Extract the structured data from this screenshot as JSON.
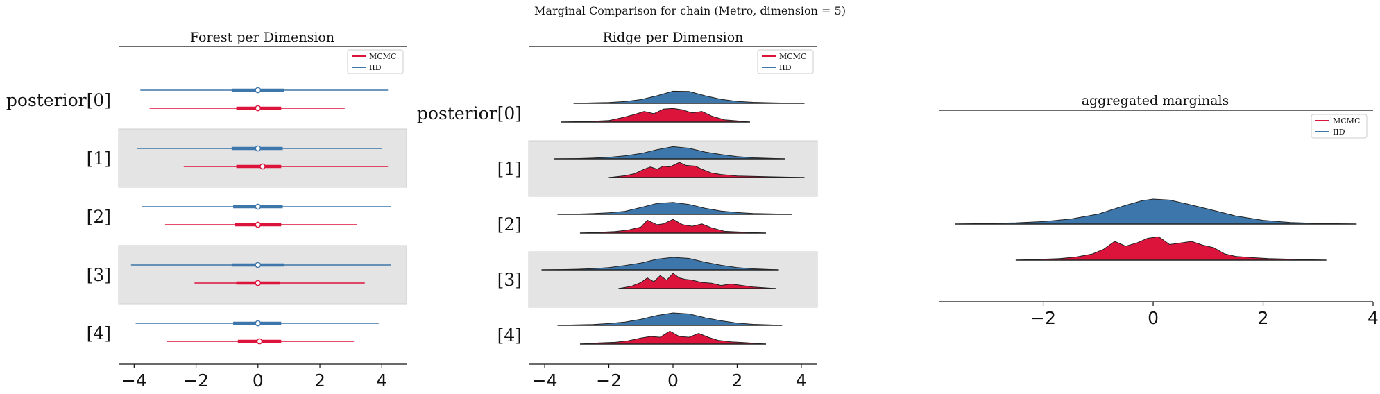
{
  "figure": {
    "title": "Marginal Comparison for chain (Metro, dimension = 5)"
  },
  "colors": {
    "mcmc": "#dc143c",
    "iid": "#3d76aa",
    "band": "#e4e4e4"
  },
  "chart_data": [
    {
      "type": "forest",
      "title": "Forest per Dimension",
      "row_labels": [
        "posterior[0]",
        "[1]",
        "[2]",
        "[3]",
        "[4]"
      ],
      "xlim": [
        -4.5,
        4.8
      ],
      "xticks": [
        -4,
        -2,
        0,
        2,
        4
      ],
      "legend": {
        "position": "top-right",
        "entries": [
          "MCMC",
          "IID"
        ]
      },
      "series": [
        {
          "name": "IID",
          "rows": [
            {
              "low": -3.8,
              "q1": -0.85,
              "median": 0.0,
              "q3": 0.85,
              "high": 4.2
            },
            {
              "low": -3.9,
              "q1": -0.85,
              "median": 0.0,
              "q3": 0.8,
              "high": 4.0
            },
            {
              "low": -3.75,
              "q1": -0.8,
              "median": 0.0,
              "q3": 0.8,
              "high": 4.3
            },
            {
              "low": -4.1,
              "q1": -0.85,
              "median": 0.0,
              "q3": 0.85,
              "high": 4.3
            },
            {
              "low": -3.95,
              "q1": -0.8,
              "median": 0.0,
              "q3": 0.75,
              "high": 3.9
            }
          ]
        },
        {
          "name": "MCMC",
          "rows": [
            {
              "low": -3.5,
              "q1": -0.7,
              "median": 0.0,
              "q3": 0.75,
              "high": 2.8
            },
            {
              "low": -2.4,
              "q1": -0.7,
              "median": 0.15,
              "q3": 0.75,
              "high": 4.2
            },
            {
              "low": -3.0,
              "q1": -0.75,
              "median": 0.0,
              "q3": 0.75,
              "high": 3.2
            },
            {
              "low": -2.05,
              "q1": -0.7,
              "median": 0.0,
              "q3": 0.7,
              "high": 3.45
            },
            {
              "low": -2.95,
              "q1": -0.65,
              "median": 0.05,
              "q3": 0.75,
              "high": 3.1
            }
          ]
        }
      ]
    },
    {
      "type": "ridgeline",
      "title": "Ridge per Dimension",
      "row_labels": [
        "posterior[0]",
        "[1]",
        "[2]",
        "[3]",
        "[4]"
      ],
      "xlim": [
        -4.5,
        4.5
      ],
      "xticks": [
        -4,
        -2,
        0,
        2,
        4
      ],
      "legend": {
        "position": "top-right",
        "entries": [
          "MCMC",
          "IID"
        ]
      },
      "series": [
        {
          "name": "IID",
          "rows": [
            {
              "x": [
                -3.1,
                -2.5,
                -2.0,
                -1.5,
                -1.0,
                -0.5,
                0.0,
                0.5,
                1.0,
                1.5,
                2.0,
                2.5,
                3.0,
                3.5,
                4.1
              ],
              "y": [
                0.0,
                0.03,
                0.06,
                0.12,
                0.25,
                0.5,
                0.8,
                0.78,
                0.5,
                0.27,
                0.13,
                0.07,
                0.04,
                0.02,
                0.0
              ]
            },
            {
              "x": [
                -3.7,
                -3.0,
                -2.5,
                -2.0,
                -1.5,
                -1.0,
                -0.5,
                0.0,
                0.5,
                1.0,
                1.5,
                2.0,
                2.5,
                3.0,
                3.5
              ],
              "y": [
                0.0,
                0.02,
                0.05,
                0.1,
                0.2,
                0.35,
                0.6,
                0.8,
                0.7,
                0.45,
                0.28,
                0.15,
                0.07,
                0.03,
                0.0
              ]
            },
            {
              "x": [
                -3.6,
                -3.0,
                -2.5,
                -2.0,
                -1.5,
                -1.0,
                -0.5,
                0.0,
                0.5,
                1.0,
                1.5,
                2.0,
                2.5,
                3.0,
                3.7
              ],
              "y": [
                0.0,
                0.02,
                0.05,
                0.1,
                0.2,
                0.45,
                0.72,
                0.78,
                0.65,
                0.4,
                0.22,
                0.12,
                0.06,
                0.03,
                0.0
              ]
            },
            {
              "x": [
                -4.1,
                -3.5,
                -3.0,
                -2.5,
                -2.0,
                -1.5,
                -1.0,
                -0.5,
                0.0,
                0.5,
                1.0,
                1.5,
                2.0,
                2.5,
                3.3
              ],
              "y": [
                0.0,
                0.02,
                0.04,
                0.08,
                0.15,
                0.28,
                0.45,
                0.7,
                0.82,
                0.75,
                0.5,
                0.3,
                0.15,
                0.07,
                0.0
              ]
            },
            {
              "x": [
                -3.6,
                -3.0,
                -2.5,
                -2.0,
                -1.5,
                -1.0,
                -0.5,
                0.0,
                0.5,
                1.0,
                1.5,
                2.0,
                2.5,
                3.0,
                3.4
              ],
              "y": [
                0.0,
                0.03,
                0.06,
                0.12,
                0.22,
                0.4,
                0.65,
                0.82,
                0.75,
                0.5,
                0.3,
                0.15,
                0.07,
                0.03,
                0.0
              ]
            }
          ]
        },
        {
          "name": "MCMC",
          "rows": [
            {
              "x": [
                -3.5,
                -2.5,
                -2.0,
                -1.6,
                -1.2,
                -0.9,
                -0.6,
                -0.3,
                0.0,
                0.3,
                0.6,
                0.9,
                1.2,
                1.6,
                2.0,
                2.4
              ],
              "y": [
                0.0,
                0.05,
                0.1,
                0.28,
                0.5,
                0.7,
                0.55,
                0.85,
                0.9,
                0.8,
                0.6,
                0.7,
                0.4,
                0.15,
                0.08,
                0.0
              ]
            },
            {
              "x": [
                -2.0,
                -1.5,
                -1.2,
                -0.9,
                -0.7,
                -0.5,
                -0.3,
                -0.1,
                0.2,
                0.4,
                0.7,
                0.9,
                1.2,
                1.5,
                2.0,
                3.0,
                4.1
              ],
              "y": [
                0.0,
                0.12,
                0.25,
                0.55,
                0.7,
                0.55,
                0.75,
                0.7,
                1.0,
                0.8,
                0.75,
                0.55,
                0.3,
                0.2,
                0.1,
                0.05,
                0.0
              ]
            },
            {
              "x": [
                -2.9,
                -2.3,
                -1.8,
                -1.4,
                -1.0,
                -0.8,
                -0.5,
                -0.3,
                0.0,
                0.3,
                0.6,
                0.9,
                1.2,
                1.6,
                2.0,
                2.9
              ],
              "y": [
                0.0,
                0.05,
                0.1,
                0.2,
                0.4,
                0.85,
                0.55,
                0.6,
                0.9,
                0.55,
                0.45,
                0.6,
                0.35,
                0.12,
                0.08,
                0.0
              ]
            },
            {
              "x": [
                -1.7,
                -1.3,
                -1.0,
                -0.8,
                -0.6,
                -0.4,
                -0.2,
                0.0,
                0.2,
                0.4,
                0.6,
                0.9,
                1.2,
                1.5,
                1.8,
                2.5,
                3.2
              ],
              "y": [
                0.0,
                0.15,
                0.4,
                0.7,
                0.45,
                0.85,
                0.55,
                1.0,
                0.7,
                0.6,
                0.55,
                0.4,
                0.35,
                0.2,
                0.3,
                0.1,
                0.0
              ]
            },
            {
              "x": [
                -2.9,
                -2.3,
                -1.8,
                -1.4,
                -1.0,
                -0.7,
                -0.4,
                -0.1,
                0.2,
                0.5,
                0.8,
                1.1,
                1.4,
                1.8,
                2.2,
                2.9
              ],
              "y": [
                0.0,
                0.08,
                0.12,
                0.22,
                0.4,
                0.5,
                0.45,
                0.85,
                0.5,
                0.45,
                0.7,
                0.45,
                0.25,
                0.15,
                0.1,
                0.0
              ]
            }
          ]
        }
      ]
    },
    {
      "type": "ridgeline",
      "title": "aggregated marginals",
      "xlim": [
        -3.9,
        4.0
      ],
      "xticks": [
        -2,
        0,
        2,
        4
      ],
      "legend": {
        "position": "top-right",
        "entries": [
          "MCMC",
          "IID"
        ]
      },
      "series": [
        {
          "name": "IID",
          "x": [
            -3.6,
            -3.0,
            -2.5,
            -2.0,
            -1.5,
            -1.0,
            -0.5,
            -0.2,
            0.0,
            0.3,
            0.6,
            1.0,
            1.5,
            2.0,
            2.5,
            3.0,
            3.7
          ],
          "y": [
            0.0,
            0.02,
            0.04,
            0.08,
            0.16,
            0.32,
            0.6,
            0.75,
            0.8,
            0.77,
            0.65,
            0.48,
            0.26,
            0.12,
            0.05,
            0.02,
            0.0
          ]
        },
        {
          "name": "MCMC",
          "x": [
            -2.5,
            -2.0,
            -1.7,
            -1.4,
            -1.1,
            -0.9,
            -0.7,
            -0.5,
            -0.3,
            -0.1,
            0.1,
            0.3,
            0.5,
            0.7,
            0.9,
            1.1,
            1.3,
            1.5,
            1.8,
            2.1,
            2.5,
            3.15
          ],
          "y": [
            0.0,
            0.03,
            0.05,
            0.1,
            0.2,
            0.35,
            0.6,
            0.45,
            0.55,
            0.7,
            0.75,
            0.5,
            0.55,
            0.6,
            0.48,
            0.4,
            0.2,
            0.12,
            0.08,
            0.05,
            0.03,
            0.0
          ]
        }
      ]
    }
  ]
}
